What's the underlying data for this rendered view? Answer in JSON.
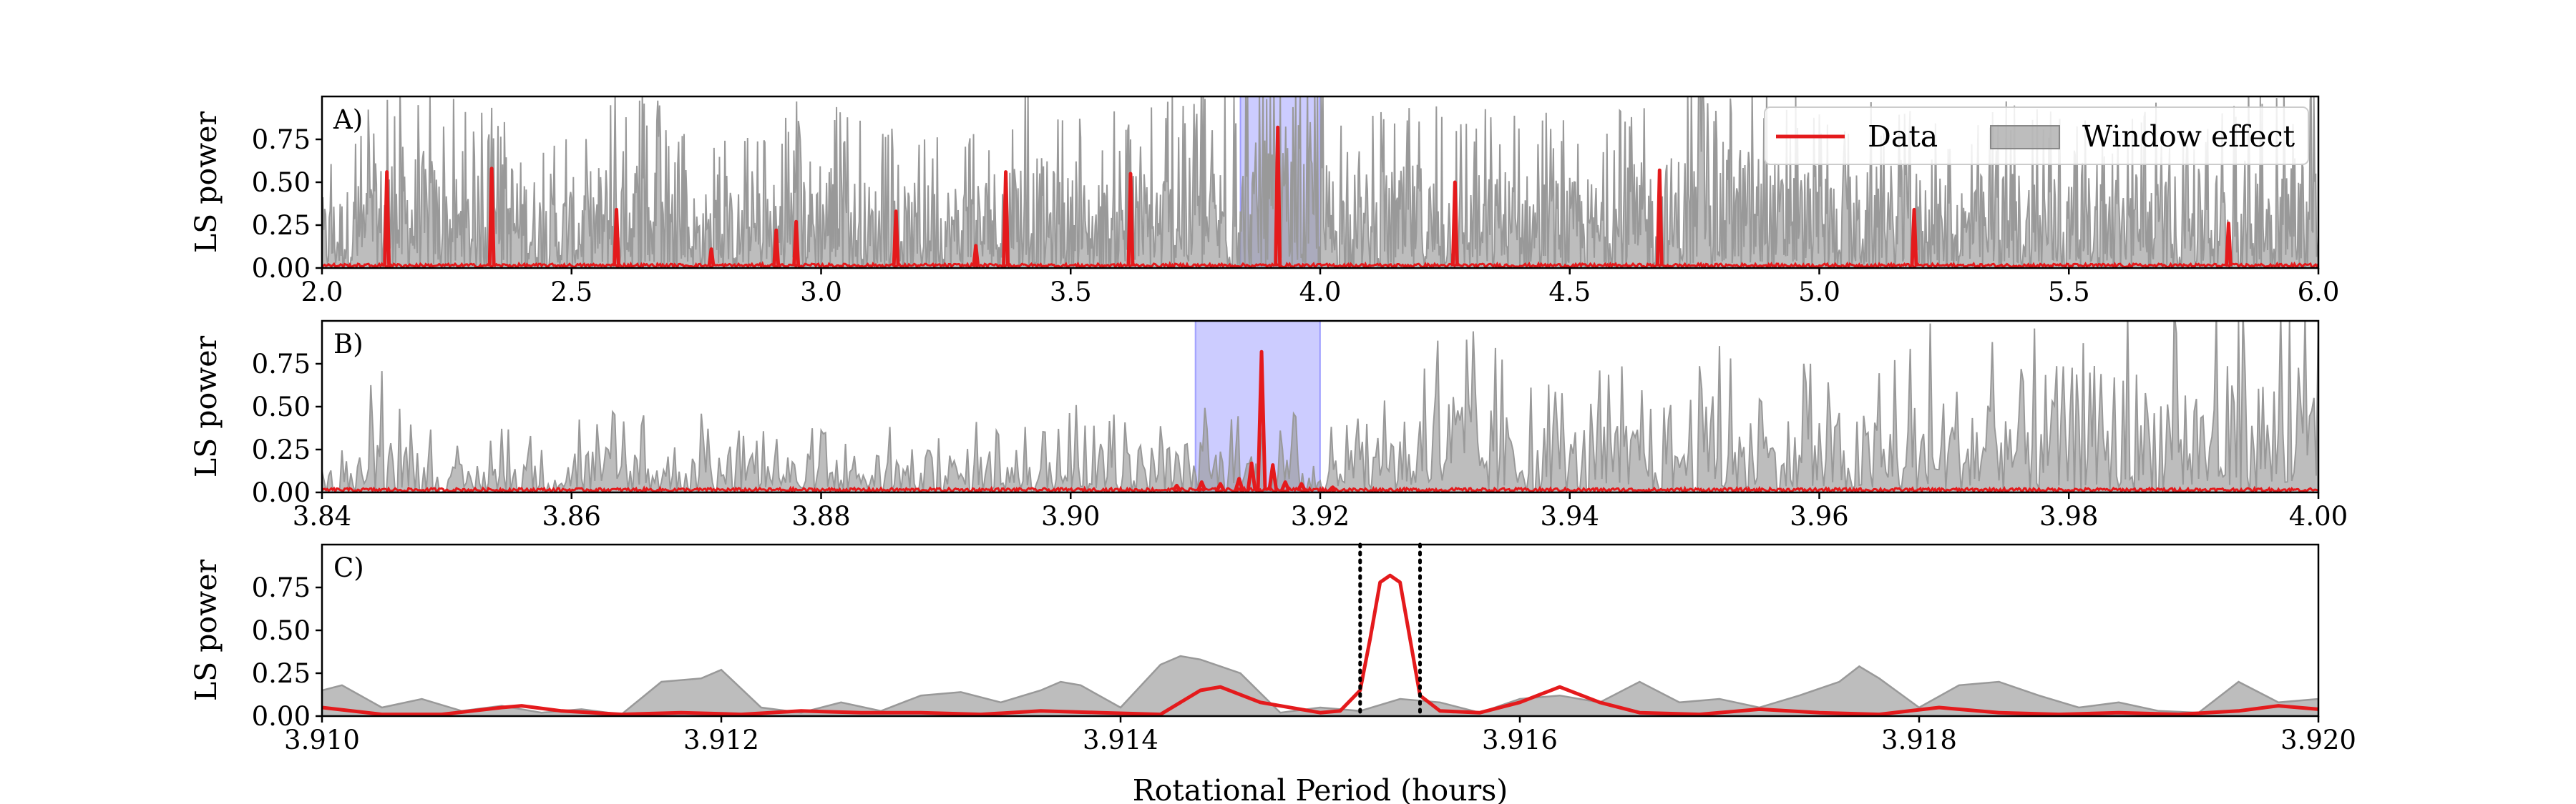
{
  "chart_data": [
    {
      "type": "line",
      "panel_label": "A)",
      "ylabel": "LS power",
      "xlim": [
        2.0,
        6.0
      ],
      "ylim": [
        0.0,
        1.0
      ],
      "xticks": [
        "2.0",
        "2.5",
        "3.0",
        "3.5",
        "4.0",
        "4.5",
        "5.0",
        "5.5",
        "6.0"
      ],
      "yticks": [
        "0.00",
        "0.25",
        "0.50",
        "0.75"
      ],
      "highlight_span": [
        3.84,
        4.0
      ],
      "legend_position": "top-right",
      "series": [
        {
          "name": "Data",
          "color": "#e41a1c",
          "peaks": [
            [
              2.13,
              0.56
            ],
            [
              2.34,
              0.58
            ],
            [
              2.59,
              0.34
            ],
            [
              2.78,
              0.11
            ],
            [
              2.91,
              0.22
            ],
            [
              2.95,
              0.27
            ],
            [
              3.15,
              0.33
            ],
            [
              3.31,
              0.13
            ],
            [
              3.37,
              0.56
            ],
            [
              3.62,
              0.55
            ],
            [
              3.915,
              0.82
            ],
            [
              4.27,
              0.5
            ],
            [
              4.68,
              0.57
            ],
            [
              5.19,
              0.34
            ],
            [
              5.82,
              0.26
            ]
          ]
        },
        {
          "name": "Window effect",
          "color": "#999999",
          "envelope": [
            [
              2.0,
              0.55
            ],
            [
              2.08,
              0.7
            ],
            [
              2.15,
              1.0
            ],
            [
              2.22,
              0.9
            ],
            [
              2.3,
              0.7
            ],
            [
              2.38,
              0.95
            ],
            [
              2.46,
              0.6
            ],
            [
              2.54,
              0.8
            ],
            [
              2.62,
              1.0
            ],
            [
              2.7,
              0.7
            ],
            [
              2.78,
              0.6
            ],
            [
              2.86,
              0.65
            ],
            [
              2.94,
              0.75
            ],
            [
              3.0,
              1.0
            ],
            [
              3.08,
              0.7
            ],
            [
              3.16,
              0.65
            ],
            [
              3.24,
              0.7
            ],
            [
              3.32,
              0.75
            ],
            [
              3.4,
              1.0
            ],
            [
              3.48,
              0.75
            ],
            [
              3.56,
              0.7
            ],
            [
              3.64,
              0.8
            ],
            [
              3.72,
              0.85
            ],
            [
              3.8,
              0.9
            ],
            [
              3.88,
              1.0
            ],
            [
              3.96,
              0.95
            ],
            [
              4.04,
              0.8
            ],
            [
              4.12,
              0.75
            ],
            [
              4.2,
              0.85
            ],
            [
              4.28,
              0.7
            ],
            [
              4.36,
              0.8
            ],
            [
              4.44,
              0.75
            ],
            [
              4.52,
              0.7
            ],
            [
              4.6,
              0.8
            ],
            [
              4.68,
              0.85
            ],
            [
              4.76,
              1.0
            ],
            [
              4.84,
              1.0
            ],
            [
              4.92,
              0.85
            ],
            [
              5.0,
              0.8
            ],
            [
              5.08,
              0.75
            ],
            [
              5.16,
              0.85
            ],
            [
              5.24,
              0.7
            ],
            [
              5.32,
              0.75
            ],
            [
              5.4,
              0.8
            ],
            [
              5.48,
              0.75
            ],
            [
              5.56,
              0.7
            ],
            [
              5.64,
              0.8
            ],
            [
              5.72,
              0.75
            ],
            [
              5.8,
              0.8
            ],
            [
              5.88,
              0.9
            ],
            [
              5.96,
              1.0
            ],
            [
              6.0,
              0.9
            ]
          ]
        }
      ]
    },
    {
      "type": "line",
      "panel_label": "B)",
      "ylabel": "LS power",
      "xlim": [
        3.84,
        4.0
      ],
      "ylim": [
        0.0,
        1.0
      ],
      "xticks": [
        "3.84",
        "3.86",
        "3.88",
        "3.90",
        "3.92",
        "3.94",
        "3.96",
        "3.98",
        "4.00"
      ],
      "yticks": [
        "0.00",
        "0.25",
        "0.50",
        "0.75"
      ],
      "highlight_span": [
        3.91,
        3.92
      ],
      "series": [
        {
          "name": "Data",
          "color": "#e41a1c",
          "peaks": [
            [
              3.9085,
              0.04
            ],
            [
              3.9105,
              0.06
            ],
            [
              3.912,
              0.05
            ],
            [
              3.9135,
              0.08
            ],
            [
              3.9145,
              0.17
            ],
            [
              3.9153,
              0.82
            ],
            [
              3.9162,
              0.16
            ],
            [
              3.9172,
              0.06
            ],
            [
              3.9185,
              0.05
            ],
            [
              3.921,
              0.03
            ]
          ]
        },
        {
          "name": "Window effect",
          "color": "#999999",
          "envelope": [
            [
              3.84,
              0.12
            ],
            [
              3.845,
              0.62
            ],
            [
              3.85,
              0.2
            ],
            [
              3.855,
              0.32
            ],
            [
              3.86,
              0.4
            ],
            [
              3.865,
              0.38
            ],
            [
              3.87,
              0.42
            ],
            [
              3.875,
              0.35
            ],
            [
              3.88,
              0.3
            ],
            [
              3.885,
              0.35
            ],
            [
              3.89,
              0.33
            ],
            [
              3.895,
              0.38
            ],
            [
              3.9,
              0.42
            ],
            [
              3.905,
              0.4
            ],
            [
              3.91,
              0.42
            ],
            [
              3.915,
              0.4
            ],
            [
              3.92,
              0.35
            ],
            [
              3.925,
              0.6
            ],
            [
              3.93,
              0.95
            ],
            [
              3.935,
              0.62
            ],
            [
              3.94,
              0.55
            ],
            [
              3.945,
              0.6
            ],
            [
              3.95,
              0.85
            ],
            [
              3.955,
              0.6
            ],
            [
              3.96,
              0.65
            ],
            [
              3.965,
              0.62
            ],
            [
              3.97,
              0.85
            ],
            [
              3.975,
              0.95
            ],
            [
              3.98,
              1.0
            ],
            [
              3.985,
              1.0
            ],
            [
              3.99,
              1.0
            ],
            [
              3.995,
              1.0
            ],
            [
              4.0,
              1.0
            ]
          ]
        }
      ]
    },
    {
      "type": "line",
      "panel_label": "C)",
      "ylabel": "LS power",
      "xlabel": "Rotational Period (hours)",
      "xlim": [
        3.91,
        3.92
      ],
      "ylim": [
        0.0,
        1.0
      ],
      "xticks": [
        "3.910",
        "3.912",
        "3.914",
        "3.916",
        "3.918",
        "3.920"
      ],
      "yticks": [
        "0.00",
        "0.25",
        "0.50",
        "0.75"
      ],
      "vlines": [
        3.9152,
        3.9155
      ],
      "series": [
        {
          "name": "Data",
          "color": "#e41a1c",
          "x": [
            3.91,
            3.9103,
            3.9106,
            3.9109,
            3.911,
            3.9112,
            3.9115,
            3.9118,
            3.9121,
            3.9124,
            3.9127,
            3.913,
            3.9133,
            3.9136,
            3.9139,
            3.9142,
            3.9144,
            3.9145,
            3.9147,
            3.915,
            3.9151,
            3.9152,
            3.91525,
            3.9153,
            3.91535,
            3.9154,
            3.91545,
            3.9155,
            3.9156,
            3.9158,
            3.916,
            3.9162,
            3.9164,
            3.9166,
            3.9169,
            3.9172,
            3.9175,
            3.9178,
            3.9181,
            3.9184,
            3.9187,
            3.919,
            3.9193,
            3.9196,
            3.9198,
            3.92
          ],
          "y": [
            0.05,
            0.01,
            0.01,
            0.05,
            0.06,
            0.03,
            0.01,
            0.02,
            0.01,
            0.03,
            0.02,
            0.02,
            0.01,
            0.03,
            0.02,
            0.01,
            0.15,
            0.17,
            0.08,
            0.02,
            0.03,
            0.15,
            0.45,
            0.78,
            0.82,
            0.78,
            0.45,
            0.12,
            0.03,
            0.02,
            0.08,
            0.17,
            0.08,
            0.02,
            0.01,
            0.04,
            0.02,
            0.01,
            0.05,
            0.02,
            0.01,
            0.02,
            0.01,
            0.03,
            0.06,
            0.04
          ]
        },
        {
          "name": "Window effect",
          "color": "#999999",
          "x": [
            3.91,
            3.9101,
            3.9103,
            3.9105,
            3.9107,
            3.9109,
            3.9111,
            3.9113,
            3.9115,
            3.9117,
            3.9119,
            3.912,
            3.9122,
            3.9124,
            3.9126,
            3.9128,
            3.913,
            3.9132,
            3.9134,
            3.9136,
            3.9137,
            3.9138,
            3.914,
            3.9142,
            3.9143,
            3.9144,
            3.9146,
            3.9148,
            3.915,
            3.9152,
            3.9154,
            3.9156,
            3.9158,
            3.916,
            3.9162,
            3.9164,
            3.9166,
            3.9168,
            3.917,
            3.9172,
            3.9174,
            3.9176,
            3.9177,
            3.9178,
            3.918,
            3.9182,
            3.9184,
            3.9186,
            3.9188,
            3.919,
            3.9192,
            3.9194,
            3.9196,
            3.9198,
            3.92
          ],
          "y": [
            0.15,
            0.18,
            0.05,
            0.1,
            0.03,
            0.06,
            0.02,
            0.04,
            0.01,
            0.2,
            0.22,
            0.27,
            0.05,
            0.02,
            0.08,
            0.03,
            0.12,
            0.14,
            0.08,
            0.15,
            0.2,
            0.18,
            0.05,
            0.3,
            0.35,
            0.33,
            0.25,
            0.02,
            0.05,
            0.03,
            0.1,
            0.08,
            0.02,
            0.1,
            0.12,
            0.08,
            0.2,
            0.08,
            0.1,
            0.05,
            0.12,
            0.2,
            0.29,
            0.22,
            0.05,
            0.18,
            0.2,
            0.12,
            0.05,
            0.08,
            0.03,
            0.02,
            0.2,
            0.08,
            0.1
          ]
        }
      ]
    }
  ]
}
